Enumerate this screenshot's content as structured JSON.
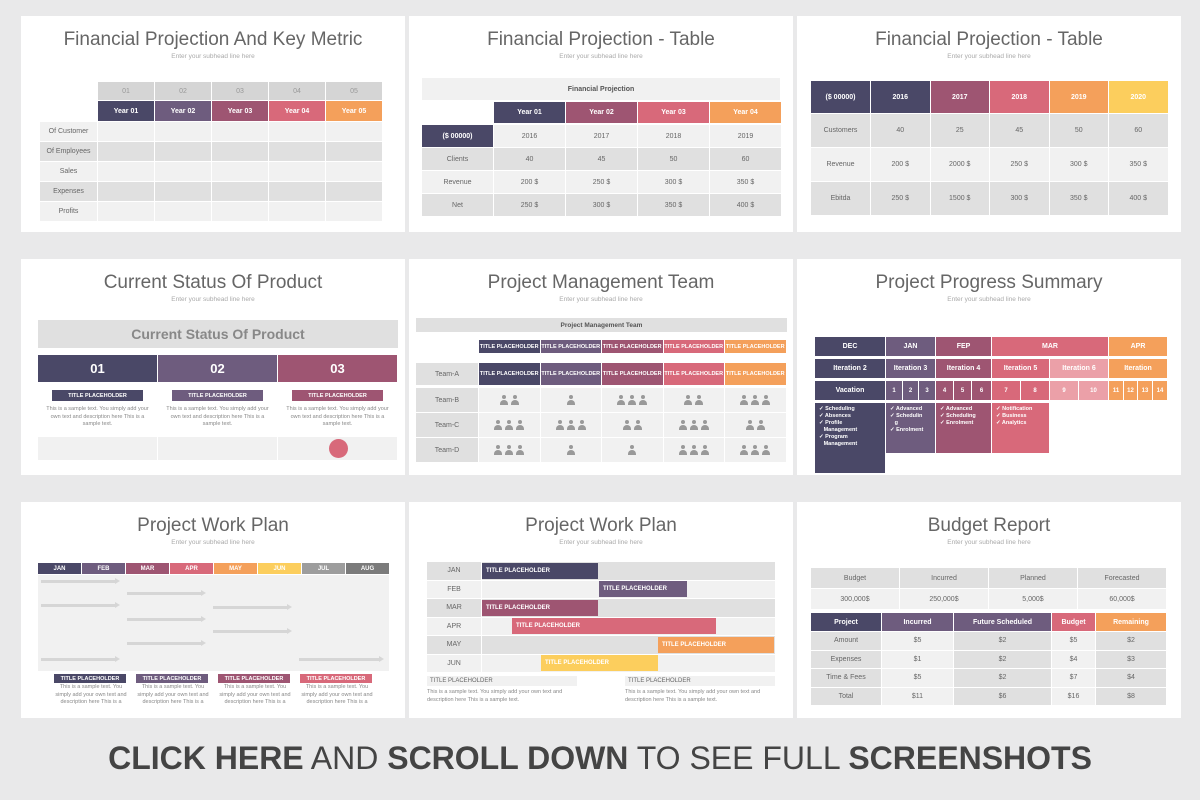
{
  "subhead": "Enter your subhead line here",
  "slide1": {
    "title": "Financial Projection And Key Metric",
    "nums": [
      "01",
      "02",
      "03",
      "04",
      "05"
    ],
    "years": [
      "Year 01",
      "Year 02",
      "Year 03",
      "Year 04",
      "Year 05"
    ],
    "rows": [
      "Of Customer",
      "Of Employees",
      "Sales",
      "Expenses",
      "Profits"
    ]
  },
  "slide2": {
    "title": "Financial Projection - Table",
    "banner": "Financial Projection",
    "years": [
      "Year 01",
      "Year 02",
      "Year 03",
      "Year 04"
    ],
    "currency": "($ 00000)",
    "cal": [
      "2016",
      "2017",
      "2018",
      "2019"
    ],
    "rows": [
      {
        "label": "Clients",
        "values": [
          "40",
          "45",
          "50",
          "60"
        ]
      },
      {
        "label": "Revenue",
        "values": [
          "200 $",
          "250 $",
          "300 $",
          "350 $"
        ]
      },
      {
        "label": "Net",
        "values": [
          "250 $",
          "300 $",
          "350 $",
          "400 $"
        ]
      }
    ]
  },
  "slide3": {
    "title": "Financial Projection - Table",
    "currency": "($ 00000)",
    "years": [
      "2016",
      "2017",
      "2018",
      "2019",
      "2020"
    ],
    "rows": [
      {
        "label": "Customers",
        "values": [
          "40",
          "25",
          "45",
          "50",
          "60"
        ]
      },
      {
        "label": "Revenue",
        "values": [
          "200 $",
          "2000 $",
          "250 $",
          "300 $",
          "350 $"
        ]
      },
      {
        "label": "Ebitda",
        "values": [
          "250 $",
          "1500 $",
          "300 $",
          "350 $",
          "400 $"
        ]
      }
    ]
  },
  "slide4": {
    "title": "Current Status Of Product",
    "banner": "Current Status Of Product",
    "nums": [
      "01",
      "02",
      "03"
    ],
    "placeholder": "TITLE PLACEHOLDER",
    "desc": "This is a sample text. You simply add your own text and description here This is a sample text."
  },
  "slide5": {
    "title": "Project Management Team",
    "banner": "Project Management Team",
    "placeholder": "TITLE PLACEHOLDER",
    "teams": [
      "Team-A",
      "Team-B",
      "Team-C",
      "Team-D"
    ]
  },
  "slide6": {
    "title": "Project Progress Summary",
    "months": [
      "DEC",
      "JAN",
      "FEP",
      "MAR",
      "APR"
    ],
    "iterations": [
      "Iteration 2",
      "Iteration 3",
      "Iteration 4",
      "Iteration 5",
      "Iteration 6",
      "Iteration"
    ],
    "vacation": "Vacation",
    "nums": [
      "1",
      "2",
      "3",
      "4",
      "5",
      "6",
      "7",
      "8",
      "9",
      "10",
      "11",
      "12",
      "13",
      "14"
    ],
    "col1": [
      "Scheduling",
      "Absences",
      "Profile",
      "Management",
      "Program",
      "Management"
    ],
    "col2": [
      "Advanced",
      "Schedulin",
      "g",
      "Enrolment"
    ],
    "col3": [
      "Advanced",
      "Scheduling",
      "Enrolment"
    ],
    "col4": [
      "Notification",
      "Business",
      "Analytics"
    ]
  },
  "slide7": {
    "title": "Project Work Plan",
    "months": [
      "JAN",
      "FEB",
      "MAR",
      "APR",
      "MAY",
      "JUN",
      "JUL",
      "AUG"
    ],
    "placeholder": "TITLE PLACEHOLDER",
    "desc": "This is a sample text. You simply add your own text and description here This is a"
  },
  "slide8": {
    "title": "Project Work Plan",
    "months": [
      "JAN",
      "FEB",
      "MAR",
      "APR",
      "MAY",
      "JUN"
    ],
    "placeholder": "TITLE PLACEHOLDER",
    "desc": "This is a sample text. You simply add your own text and description here This is a sample text."
  },
  "slide9": {
    "title": "Budget Report",
    "top_headers": [
      "Budget",
      "Incurred",
      "Planned",
      "Forecasted"
    ],
    "top_values": [
      "300,000$",
      "250,000$",
      "5,000$",
      "60,000$"
    ],
    "headers": [
      "Project",
      "Incurred",
      "Future Scheduled",
      "Budget",
      "Remaining"
    ],
    "rows": [
      {
        "label": "Amount",
        "values": [
          "$5",
          "$2",
          "$5",
          "$2"
        ]
      },
      {
        "label": "Expenses",
        "values": [
          "$1",
          "$2",
          "$4",
          "$3"
        ]
      },
      {
        "label": "Time & Fees",
        "values": [
          "$5",
          "$2",
          "$7",
          "$4"
        ]
      },
      {
        "label": "Total",
        "values": [
          "$11",
          "$6",
          "$16",
          "$8"
        ]
      }
    ]
  },
  "footer": {
    "part1": "CLICK HERE",
    "part2": " AND ",
    "part3": "SCROLL DOWN",
    "part4": " TO SEE FULL ",
    "part5": "SCREENSHOTS"
  },
  "colors": {
    "c1": "#4a4867",
    "c2": "#6e5c7e",
    "c3": "#9e5572",
    "c4": "#d8697a",
    "c5": "#f4a05b",
    "c6": "#fcce5d"
  }
}
